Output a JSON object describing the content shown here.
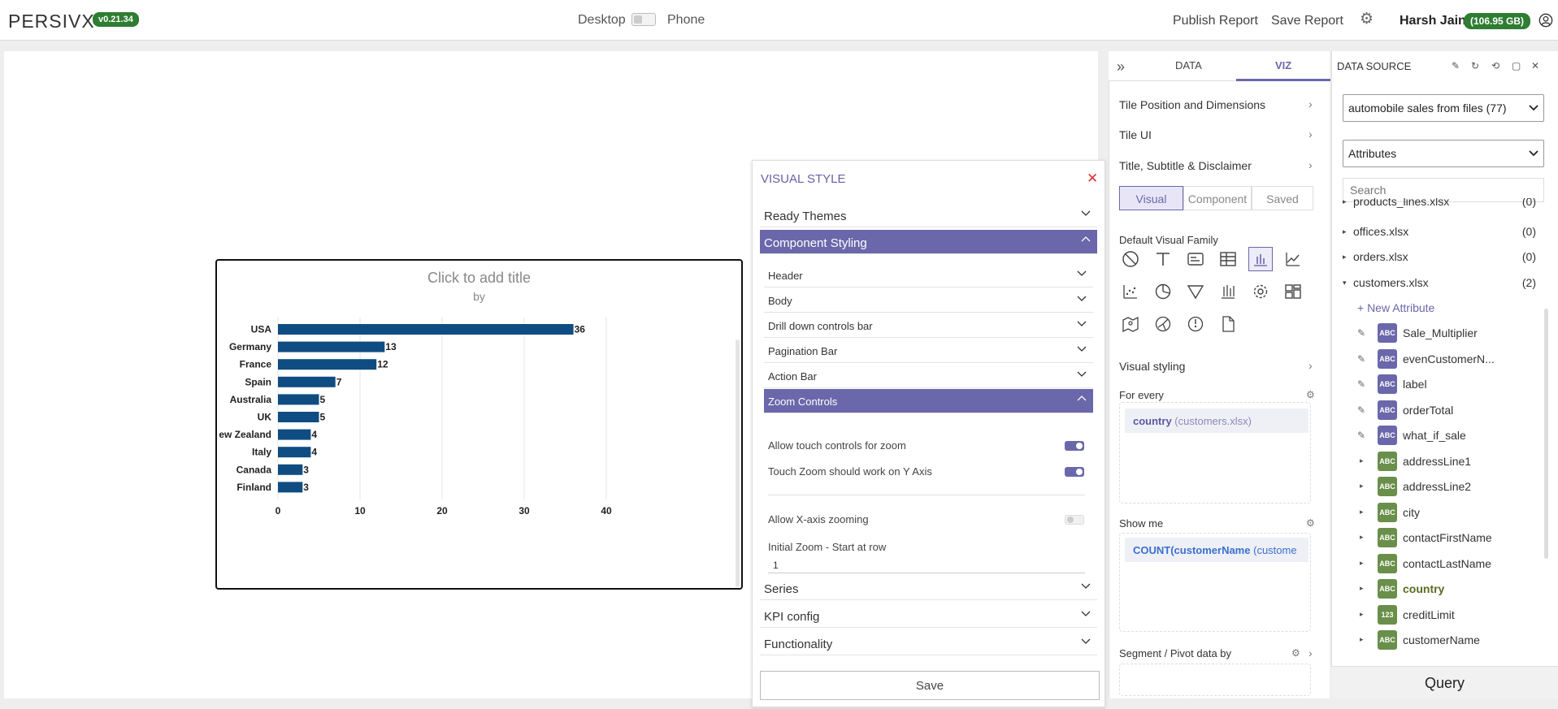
{
  "header": {
    "logo": "PERSIVX",
    "version": "v0.21.34",
    "device_desktop": "Desktop",
    "device_phone": "Phone",
    "publish": "Publish Report",
    "save_report": "Save Report",
    "user": "Harsh Jain",
    "storage": "(106.95 GB)"
  },
  "tile": {
    "title": "Click to add title",
    "subtitle": "by"
  },
  "chart_data": {
    "type": "bar",
    "orientation": "horizontal",
    "categories": [
      "USA",
      "Germany",
      "France",
      "Spain",
      "Australia",
      "UK",
      "ew Zealand",
      "Italy",
      "Canada",
      "Finland"
    ],
    "values": [
      36,
      13,
      12,
      7,
      5,
      5,
      4,
      4,
      3,
      3
    ],
    "xlim": [
      0,
      40
    ],
    "xticks": [
      0,
      10,
      20,
      30,
      40
    ],
    "bar_color": "#0f4c81",
    "grid": true
  },
  "visual_style": {
    "title": "VISUAL STYLE",
    "close": "✕",
    "ready_themes": "Ready Themes",
    "component_styling": "Component Styling",
    "sub_items": [
      "Header",
      "Body",
      "Drill down controls bar",
      "Pagination Bar",
      "Action Bar"
    ],
    "zoom_controls": "Zoom Controls",
    "opt_touch_zoom": "Allow touch controls for zoom",
    "opt_touch_y": "Touch Zoom should work on Y Axis",
    "opt_x_zoom": "Allow X-axis zooming",
    "initial_zoom_label": "Initial Zoom - Start at row",
    "initial_zoom_value": "1",
    "series": "Series",
    "kpi_config": "KPI config",
    "functionality": "Functionality",
    "save": "Save"
  },
  "side": {
    "tab_data": "DATA",
    "tab_viz": "VIZ",
    "rows": [
      "Tile Position and Dimensions",
      "Tile UI",
      "Title, Subtitle & Disclaimer"
    ],
    "seg": [
      "Visual",
      "Component",
      "Saved"
    ],
    "default_family": "Default Visual Family",
    "visual_styling": "Visual styling",
    "for_every": "For every",
    "for_every_field": "country",
    "for_every_source": "(customers.xlsx)",
    "show_me": "Show me",
    "show_me_field": "COUNT(customerName",
    "show_me_source": "(custome",
    "segment": "Segment / Pivot data by"
  },
  "datasource": {
    "title": "DATA SOURCE",
    "source_select": "automobile sales from files (77)",
    "attr_select": "Attributes",
    "search_placeholder": "Search",
    "files": [
      {
        "name": "products_lines.xlsx",
        "count": "(0)"
      },
      {
        "name": "offices.xlsx",
        "count": "(0)"
      },
      {
        "name": "orders.xlsx",
        "count": "(0)"
      },
      {
        "name": "customers.xlsx",
        "count": "(2)"
      }
    ],
    "new_attribute": "+ New Attribute",
    "attributes": [
      {
        "name": "Sale_Multiplier",
        "type": "ABC",
        "kind": "custom"
      },
      {
        "name": "evenCustomerN...",
        "type": "ABC",
        "kind": "custom"
      },
      {
        "name": "label",
        "type": "ABC",
        "kind": "custom"
      },
      {
        "name": "orderTotal",
        "type": "ABC",
        "kind": "custom"
      },
      {
        "name": "what_if_sale",
        "type": "ABC",
        "kind": "custom"
      },
      {
        "name": "addressLine1",
        "type": "ABC",
        "kind": "field"
      },
      {
        "name": "addressLine2",
        "type": "ABC",
        "kind": "field"
      },
      {
        "name": "city",
        "type": "ABC",
        "kind": "field"
      },
      {
        "name": "contactFirstName",
        "type": "ABC",
        "kind": "field"
      },
      {
        "name": "contactLastName",
        "type": "ABC",
        "kind": "field"
      },
      {
        "name": "country",
        "type": "ABC",
        "kind": "field"
      },
      {
        "name": "creditLimit",
        "type": "123",
        "kind": "field"
      },
      {
        "name": "customerName",
        "type": "ABC",
        "kind": "field"
      }
    ],
    "query": "Query"
  }
}
